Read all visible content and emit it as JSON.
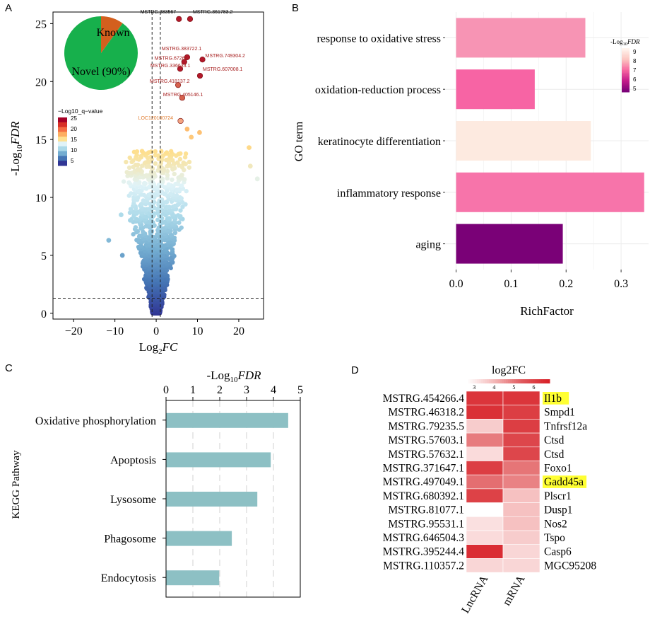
{
  "panels": {
    "a": "A",
    "b": "B",
    "c": "C",
    "d": "D"
  },
  "chart_data": [
    {
      "id": "A",
      "type": "scatter",
      "title": "",
      "xlabel_prefix": "Log",
      "xlabel_sub": "2",
      "xlabel_suffix": "FC",
      "ylabel_prefix": "-Log",
      "ylabel_sub": "10",
      "ylabel_suffix": "FDR",
      "xlim": [
        -25,
        26
      ],
      "ylim": [
        -0.5,
        26
      ],
      "xticks": [
        -20,
        -10,
        0,
        10,
        20
      ],
      "yticks": [
        0,
        5,
        10,
        15,
        20,
        25
      ],
      "thresholds": {
        "x": [
          -1,
          1
        ],
        "y": 1.3
      },
      "colorbar": {
        "title": "−Log10_q−value",
        "ticks": [
          25,
          20,
          15,
          10,
          5
        ],
        "colors": [
          "#313695",
          "#4575b4",
          "#74add1",
          "#abd9e9",
          "#e0f3f8",
          "#fee090",
          "#fdae61",
          "#f46d43",
          "#d73027",
          "#a50026"
        ]
      },
      "labeled_points": [
        {
          "label": "MSTRG.383567",
          "x": 5.5,
          "y": 25.4
        },
        {
          "label": "MSTRG.361783.2",
          "x": 8.2,
          "y": 25.4
        },
        {
          "label": "MSTRG.383722.1",
          "x": 7.5,
          "y": 22.1
        },
        {
          "label": "MSTRG.749304.2",
          "x": 11.2,
          "y": 21.9
        },
        {
          "label": "MSTRG.67266",
          "x": 6.8,
          "y": 21.7
        },
        {
          "label": "MSTRG.336633.1",
          "x": 5.8,
          "y": 21.1
        },
        {
          "label": "MSTRG.607008.1",
          "x": 10.6,
          "y": 20.5
        },
        {
          "label": "MSTRG.418137.2",
          "x": 5.3,
          "y": 19.7
        },
        {
          "label": "MSTRG.405146.1",
          "x": 6.3,
          "y": 18.6
        },
        {
          "label": "LOC120100724",
          "x": 5.9,
          "y": 16.6
        }
      ],
      "outliers": [
        {
          "x": 22.5,
          "y": 14.3
        },
        {
          "x": 22.8,
          "y": 12.7
        },
        {
          "x": 24.5,
          "y": 11.6
        },
        {
          "x": -8.5,
          "y": 8.5
        },
        {
          "x": -11.5,
          "y": 6.3
        },
        {
          "x": -8.2,
          "y": 5.0
        },
        {
          "x": 8.5,
          "y": 15.2
        },
        {
          "x": 10.5,
          "y": 15.6
        },
        {
          "x": 7.5,
          "y": 15.9
        }
      ],
      "inset_pie": {
        "slices": [
          {
            "label": "Known",
            "value": 10,
            "color": "#d35f1e"
          },
          {
            "label": "Novel (90%)",
            "value": 90,
            "color": "#17b04c"
          }
        ]
      }
    },
    {
      "id": "B",
      "type": "bar",
      "orientation": "horizontal",
      "categories": [
        "response to oxidative stress",
        "oxidation-reduction process",
        "keratinocyte differentiation",
        "inflammatory response",
        "aging"
      ],
      "values": [
        0.235,
        0.143,
        0.245,
        0.342,
        0.194
      ],
      "fdr": [
        6.5,
        7.3,
        5.0,
        7.0,
        9.0
      ],
      "colors": [
        "#f794b4",
        "#f764a4",
        "#fdeae0",
        "#f774aa",
        "#7a0177"
      ],
      "xlabel": "RichFactor",
      "ylabel": "GO term",
      "xlim": [
        -0.02,
        0.35
      ],
      "xticks": [
        0.0,
        0.1,
        0.2,
        0.3
      ],
      "legend": {
        "title_prefix": "-Log",
        "title_sub": "10",
        "title_suffix": "FDR",
        "ticks": [
          9,
          8,
          7,
          6,
          5
        ],
        "range": [
          4.6,
          9.4
        ],
        "colors": [
          "#fff5ee",
          "#fcc5c0",
          "#f768a1",
          "#c51b8a",
          "#7a0177"
        ]
      }
    },
    {
      "id": "C",
      "type": "bar",
      "orientation": "horizontal",
      "categories": [
        "Oxidative phosphorylation",
        "Apoptosis",
        "Lysosome",
        "Phagosome",
        "Endocytosis"
      ],
      "values": [
        4.55,
        3.9,
        3.4,
        2.45,
        1.98
      ],
      "color": "#8dc0c4",
      "title_prefix": "-Log",
      "title_sub": "10",
      "title_suffix": "FDR",
      "ylabel": "KEGG Pathway",
      "xlim": [
        0,
        5
      ],
      "xticks": [
        0,
        1,
        2,
        3,
        4,
        5
      ]
    },
    {
      "id": "D",
      "type": "heatmap",
      "title": "log2FC",
      "columns": [
        "LncRNA",
        "mRNA"
      ],
      "rows": [
        "MSTRG.454266.4",
        "MSTRG.46318.2",
        "MSTRG.79235.5",
        "MSTRG.57603.1",
        "MSTRG.57632.1",
        "MSTRG.371647.1",
        "MSTRG.497049.1",
        "MSTRG.680392.1",
        "MSTRG.81077.1",
        "MSTRG.95531.1",
        "MSTRG.646504.3",
        "MSTRG.395244.4",
        "MSTRG.110357.2"
      ],
      "genes": [
        "Il1b",
        "Smpd1",
        "Tnfrsf12a",
        "Ctsd",
        "Ctsd",
        "Foxo1",
        "Gadd45a",
        "Plscr1",
        "Dusp1",
        "Nos2",
        "Tspo",
        "Casp6",
        "MGC95208"
      ],
      "highlighted_genes": [
        "Il1b",
        "Gadd45a"
      ],
      "values": [
        [
          6.3,
          6.3
        ],
        [
          6.4,
          6.1
        ],
        [
          3.6,
          6.1
        ],
        [
          4.9,
          5.9
        ],
        [
          3.3,
          5.9
        ],
        [
          6.1,
          5.0
        ],
        [
          5.1,
          4.8
        ],
        [
          6.0,
          3.8
        ],
        [
          2.6,
          3.8
        ],
        [
          3.2,
          3.8
        ],
        [
          3.3,
          3.6
        ],
        [
          6.5,
          3.4
        ],
        [
          3.4,
          3.4
        ]
      ],
      "colorbar": {
        "ticks": [
          3,
          4,
          5,
          6
        ],
        "range": [
          2.6,
          6.8
        ],
        "low_color": "#ffffff",
        "high_color": "#d82128"
      }
    }
  ]
}
